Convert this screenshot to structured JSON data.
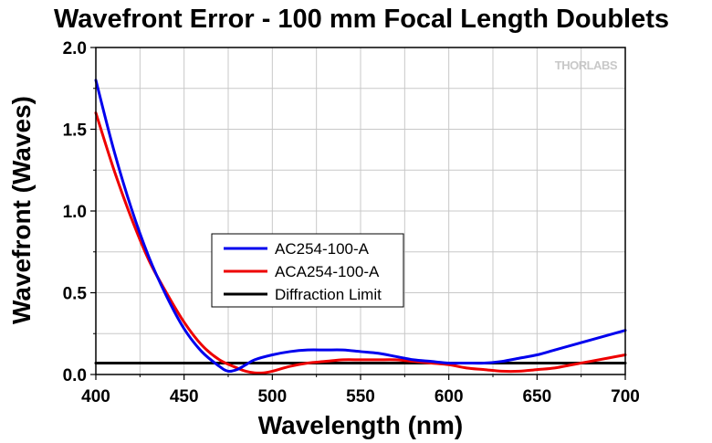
{
  "chart_data": {
    "type": "line",
    "title": "Wavefront Error - 100 mm Focal Length Doublets",
    "xlabel": "Wavelength (nm)",
    "ylabel": "Wavefront (Waves)",
    "xlim": [
      400,
      700
    ],
    "ylim": [
      0,
      2.0
    ],
    "x_ticks": [
      "400",
      "450",
      "500",
      "550",
      "600",
      "650",
      "700"
    ],
    "y_ticks": [
      "0.0",
      "0.5",
      "1.0",
      "1.5",
      "2.0"
    ],
    "grid": true,
    "legend_position": "center-left",
    "watermark": "THORLABS",
    "series": [
      {
        "name": "AC254-100-A",
        "color": "#0000ee",
        "x": [
          400,
          410,
          420,
          430,
          440,
          450,
          460,
          470,
          475,
          480,
          485,
          490,
          500,
          510,
          520,
          530,
          540,
          550,
          560,
          570,
          580,
          590,
          600,
          610,
          620,
          630,
          640,
          650,
          660,
          670,
          680,
          690,
          700
        ],
        "y": [
          1.8,
          1.38,
          1.02,
          0.72,
          0.48,
          0.28,
          0.14,
          0.05,
          0.02,
          0.03,
          0.06,
          0.09,
          0.12,
          0.14,
          0.15,
          0.15,
          0.15,
          0.14,
          0.13,
          0.11,
          0.09,
          0.08,
          0.07,
          0.07,
          0.07,
          0.08,
          0.1,
          0.12,
          0.15,
          0.18,
          0.21,
          0.24,
          0.27
        ]
      },
      {
        "name": "ACA254-100-A",
        "color": "#ee0000",
        "x": [
          400,
          410,
          420,
          430,
          440,
          450,
          460,
          470,
          480,
          485,
          490,
          495,
          500,
          510,
          520,
          530,
          540,
          550,
          560,
          570,
          580,
          590,
          600,
          610,
          620,
          630,
          640,
          650,
          660,
          670,
          680,
          690,
          700
        ],
        "y": [
          1.6,
          1.26,
          0.96,
          0.7,
          0.5,
          0.32,
          0.18,
          0.09,
          0.04,
          0.02,
          0.01,
          0.01,
          0.02,
          0.05,
          0.07,
          0.08,
          0.09,
          0.09,
          0.09,
          0.09,
          0.08,
          0.07,
          0.06,
          0.04,
          0.03,
          0.02,
          0.02,
          0.03,
          0.04,
          0.06,
          0.08,
          0.1,
          0.12
        ]
      },
      {
        "name": "Diffraction Limit",
        "color": "#000000",
        "x": [
          400,
          700
        ],
        "y": [
          0.07,
          0.07
        ]
      }
    ]
  }
}
